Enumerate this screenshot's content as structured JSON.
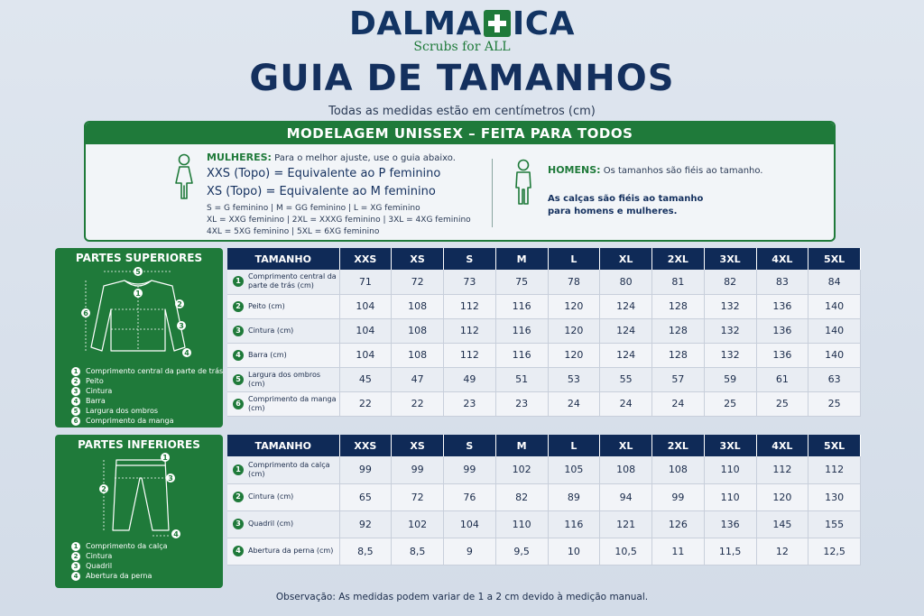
{
  "brand": {
    "name_part1": "DALMA",
    "name_part2": "ICA",
    "tagline": "Scrubs for ALL"
  },
  "title": "GUIA DE TAMANHOS",
  "subtitle": "Todas as medidas estão em centímetros (cm)",
  "unisex": {
    "header": "MODELAGEM UNISSEX – FEITA PARA TODOS",
    "women": {
      "label": "MULHERES:",
      "intro": "Para o melhor ajuste, use o guia abaixo.",
      "line1": "XXS (Topo) = Equivalente ao P feminino",
      "line2": "XS (Topo) = Equivalente ao M feminino",
      "equiv1": "S = G feminino  |  M = GG feminino  |  L = XG feminino",
      "equiv2": "XL = XXG feminino  |  2XL = XXXG feminino  |  3XL = 4XG feminino",
      "equiv3": "4XL = 5XG feminino  |  5XL = 6XG feminino"
    },
    "men": {
      "label": "HOMENS:",
      "intro": "Os tamanhos são fiéis ao tamanho.",
      "note": "As calças são fiéis ao tamanho para homens e mulheres."
    }
  },
  "upper": {
    "title": "PARTES SUPERIORES",
    "legend": [
      "Comprimento central da parte de trás",
      "Peito",
      "Cintura",
      "Barra",
      "Largura dos ombros",
      "Comprimento da manga"
    ],
    "size_header": "TAMANHO",
    "sizes": [
      "XXS",
      "XS",
      "S",
      "M",
      "L",
      "XL",
      "2XL",
      "3XL",
      "4XL",
      "5XL"
    ],
    "rows": [
      {
        "num": "1",
        "label": "Comprimento central da parte de trás (cm)",
        "values": [
          "71",
          "72",
          "73",
          "75",
          "78",
          "80",
          "81",
          "82",
          "83",
          "84"
        ]
      },
      {
        "num": "2",
        "label": "Peito (cm)",
        "values": [
          "104",
          "108",
          "112",
          "116",
          "120",
          "124",
          "128",
          "132",
          "136",
          "140"
        ]
      },
      {
        "num": "3",
        "label": "Cintura (cm)",
        "values": [
          "104",
          "108",
          "112",
          "116",
          "120",
          "124",
          "128",
          "132",
          "136",
          "140"
        ]
      },
      {
        "num": "4",
        "label": "Barra (cm)",
        "values": [
          "104",
          "108",
          "112",
          "116",
          "120",
          "124",
          "128",
          "132",
          "136",
          "140"
        ]
      },
      {
        "num": "5",
        "label": "Largura dos ombros (cm)",
        "values": [
          "45",
          "47",
          "49",
          "51",
          "53",
          "55",
          "57",
          "59",
          "61",
          "63"
        ]
      },
      {
        "num": "6",
        "label": "Comprimento da manga (cm)",
        "values": [
          "22",
          "22",
          "23",
          "23",
          "24",
          "24",
          "24",
          "25",
          "25",
          "25"
        ]
      }
    ]
  },
  "lower": {
    "title": "PARTES INFERIORES",
    "legend": [
      "Comprimento da calça",
      "Cintura",
      "Quadril",
      "Abertura da perna"
    ],
    "size_header": "TAMANHO",
    "sizes": [
      "XXS",
      "XS",
      "S",
      "M",
      "L",
      "XL",
      "2XL",
      "3XL",
      "4XL",
      "5XL"
    ],
    "rows": [
      {
        "num": "1",
        "label": "Comprimento da calça (cm)",
        "values": [
          "99",
          "99",
          "99",
          "102",
          "105",
          "108",
          "108",
          "110",
          "112",
          "112"
        ]
      },
      {
        "num": "2",
        "label": "Cintura (cm)",
        "values": [
          "65",
          "72",
          "76",
          "82",
          "89",
          "94",
          "99",
          "110",
          "120",
          "130"
        ]
      },
      {
        "num": "3",
        "label": "Quadril (cm)",
        "values": [
          "92",
          "102",
          "104",
          "110",
          "116",
          "121",
          "126",
          "136",
          "145",
          "155"
        ]
      },
      {
        "num": "4",
        "label": "Abertura da perna (cm)",
        "values": [
          "8,5",
          "8,5",
          "9",
          "9,5",
          "10",
          "10,5",
          "11",
          "11,5",
          "12",
          "12,5"
        ]
      }
    ]
  },
  "footnote": "Observação: As medidas podem variar de 1 a 2 cm devido à medição manual.",
  "colors": {
    "navy": "#0f2a57",
    "green": "#1f7a3a",
    "background": "#dfe6ef"
  }
}
